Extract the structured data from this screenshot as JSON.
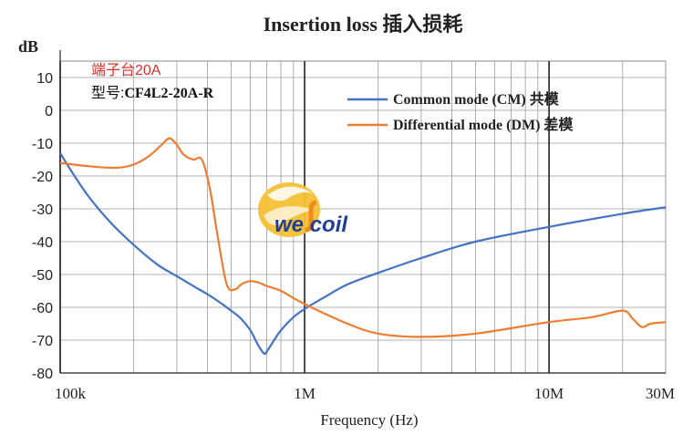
{
  "chart_data": {
    "type": "line",
    "title": "Insertion loss 插入损耗",
    "ylabel": "dB",
    "xlabel": "Frequency (Hz)",
    "xscale": "log",
    "xlim": [
      100000,
      30000000
    ],
    "ylim": [
      -80,
      15
    ],
    "yticks": [
      10,
      0,
      -10,
      -20,
      -30,
      -40,
      -50,
      -60,
      -70,
      -80
    ],
    "ytick_labels": [
      "10",
      "0",
      "-10",
      "-20",
      "-30",
      "-40",
      "-50",
      "-60",
      "-70",
      "-80"
    ],
    "xticks": [
      100000,
      1000000,
      10000000,
      30000000
    ],
    "xtick_labels": [
      "100k",
      "1M",
      "10M",
      "30M"
    ],
    "grid": true,
    "legend_position": "top-right",
    "annotations": {
      "part_line1": "端子台20A",
      "part_line2_prefix": "型号:",
      "part_line2_model": "CF4L2-20A-R"
    },
    "series": [
      {
        "name": "Common mode (CM) 共模",
        "color": "#4472c4",
        "x": [
          100000,
          110000,
          130000,
          160000,
          200000,
          250000,
          300000,
          350000,
          400000,
          450000,
          500000,
          550000,
          600000,
          640000,
          680000,
          700000,
          750000,
          800000,
          900000,
          1000000,
          1200000,
          1500000,
          2000000,
          3000000,
          5000000,
          10000000,
          20000000,
          30000000
        ],
        "y": [
          -13,
          -18,
          -26,
          -34,
          -41,
          -47,
          -50.5,
          -53.5,
          -56,
          -58.5,
          -61,
          -63.5,
          -67,
          -71,
          -74,
          -73.5,
          -70,
          -67,
          -63,
          -60.5,
          -57,
          -53,
          -49.5,
          -45,
          -40,
          -35.5,
          -31.5,
          -29.5
        ]
      },
      {
        "name": "Differential mode (DM) 差模",
        "color": "#ed7d31",
        "x": [
          100000,
          130000,
          170000,
          200000,
          230000,
          260000,
          280000,
          300000,
          320000,
          350000,
          380000,
          410000,
          440000,
          480000,
          520000,
          550000,
          600000,
          650000,
          700000,
          800000,
          1000000,
          1500000,
          2000000,
          3000000,
          5000000,
          10000000,
          15000000,
          20000000,
          22000000,
          24000000,
          26000000,
          30000000
        ],
        "y": [
          -16,
          -17,
          -17.5,
          -16.5,
          -14,
          -10.5,
          -8.5,
          -10.5,
          -13.5,
          -15,
          -15,
          -24,
          -38,
          -53,
          -54.5,
          -53,
          -52,
          -52.5,
          -53.5,
          -55,
          -59,
          -65,
          -68,
          -69,
          -68,
          -64.5,
          -63,
          -61,
          -63.5,
          -66,
          -65,
          -64.5
        ]
      }
    ]
  },
  "logo": {
    "name": "wellcoil",
    "text": "we  coil",
    "brand_color": "#1f3f9a",
    "accent_color": "#f2b824"
  }
}
